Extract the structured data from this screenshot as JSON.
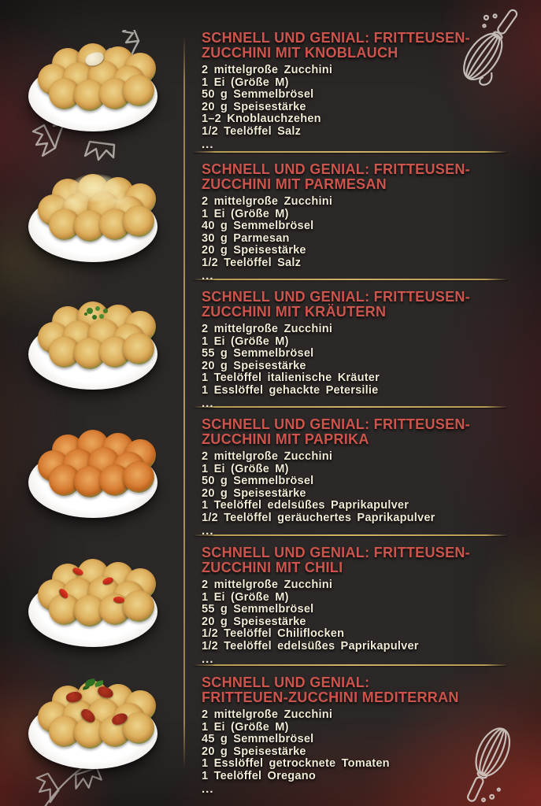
{
  "page": {
    "background_color": "#2c2827",
    "divider_color": "#c9ab61",
    "title_color": "#cd544c",
    "ingredient_color": "#f1ebd6"
  },
  "sections": [
    {
      "title_line1": "SCHNELL UND GENIAL: FRITTEUSEN-",
      "title_line2": "ZUCCHINI MIT KNOBLAUCH",
      "ingredients": [
        "2 mittelgroße Zucchini",
        "1 Ei (Größe M)",
        "50 g Semmelbrösel",
        "20 g Speisestärke",
        "1–2 Knoblauchzehen",
        "1/2 Teelöffel Salz"
      ],
      "more": "...",
      "photo": {
        "topping": "garlic"
      }
    },
    {
      "title_line1": "SCHNELL UND GENIAL: FRITTEUSEN-",
      "title_line2": "ZUCCHINI MIT PARMESAN",
      "ingredients": [
        "2 mittelgroße Zucchini",
        "1 Ei (Größe M)",
        "40 g Semmelbrösel",
        "30 g Parmesan",
        "20 g Speisestärke",
        "1/2 Teelöffel Salz"
      ],
      "more": "...",
      "photo": {
        "topping": "parmesan"
      }
    },
    {
      "title_line1": "SCHNELL UND GENIAL: FRITTEUSEN-",
      "title_line2": "ZUCCHINI MIT KRÄUTERN",
      "ingredients": [
        "2 mittelgroße Zucchini",
        "1 Ei (Größe M)",
        "55 g Semmelbrösel",
        "20 g Speisestärke",
        "1 Teelöffel italienische Kräuter",
        "1 Esslöffel gehackte Petersilie"
      ],
      "more": "...",
      "photo": {
        "topping": "herbs"
      }
    },
    {
      "title_line1": "SCHNELL UND GENIAL: FRITTEUSEN-",
      "title_line2": "ZUCCHINI MIT PAPRIKA",
      "ingredients": [
        "2 mittelgroße Zucchini",
        "1 Ei (Größe M)",
        "50 g Semmelbrösel",
        "20 g Speisestärke",
        "1 Teelöffel edelsüßes Paprikapulver",
        "1/2 Teelöffel geräuchertes Paprikapulver"
      ],
      "more": "...",
      "photo": {
        "topping": "paprika"
      }
    },
    {
      "title_line1": "SCHNELL UND GENIAL: FRITTEUSEN-",
      "title_line2": "ZUCCHINI MIT CHILI",
      "ingredients": [
        "2 mittelgroße Zucchini",
        "1 Ei (Größe M)",
        "55 g Semmelbrösel",
        "20 g Speisestärke",
        "1/2 Teelöffel Chiliflocken",
        "1/2 Teelöffel edelsüßes Paprikapulver"
      ],
      "more": "...",
      "photo": {
        "topping": "chili"
      }
    },
    {
      "title_line1": "SCHNELL UND GENIAL:",
      "title_line2": "FRITTEUEN-ZUCCHINI MEDITERRAN",
      "ingredients": [
        "2 mittelgroße Zucchini",
        "1 Ei (Größe M)",
        "45 g Semmelbrösel",
        "20 g Speisestärke",
        "1 Esslöffel getrocknete Tomaten",
        "1 Teelöffel Oregano"
      ],
      "more": "...",
      "photo": {
        "topping": "mediterran"
      }
    }
  ]
}
